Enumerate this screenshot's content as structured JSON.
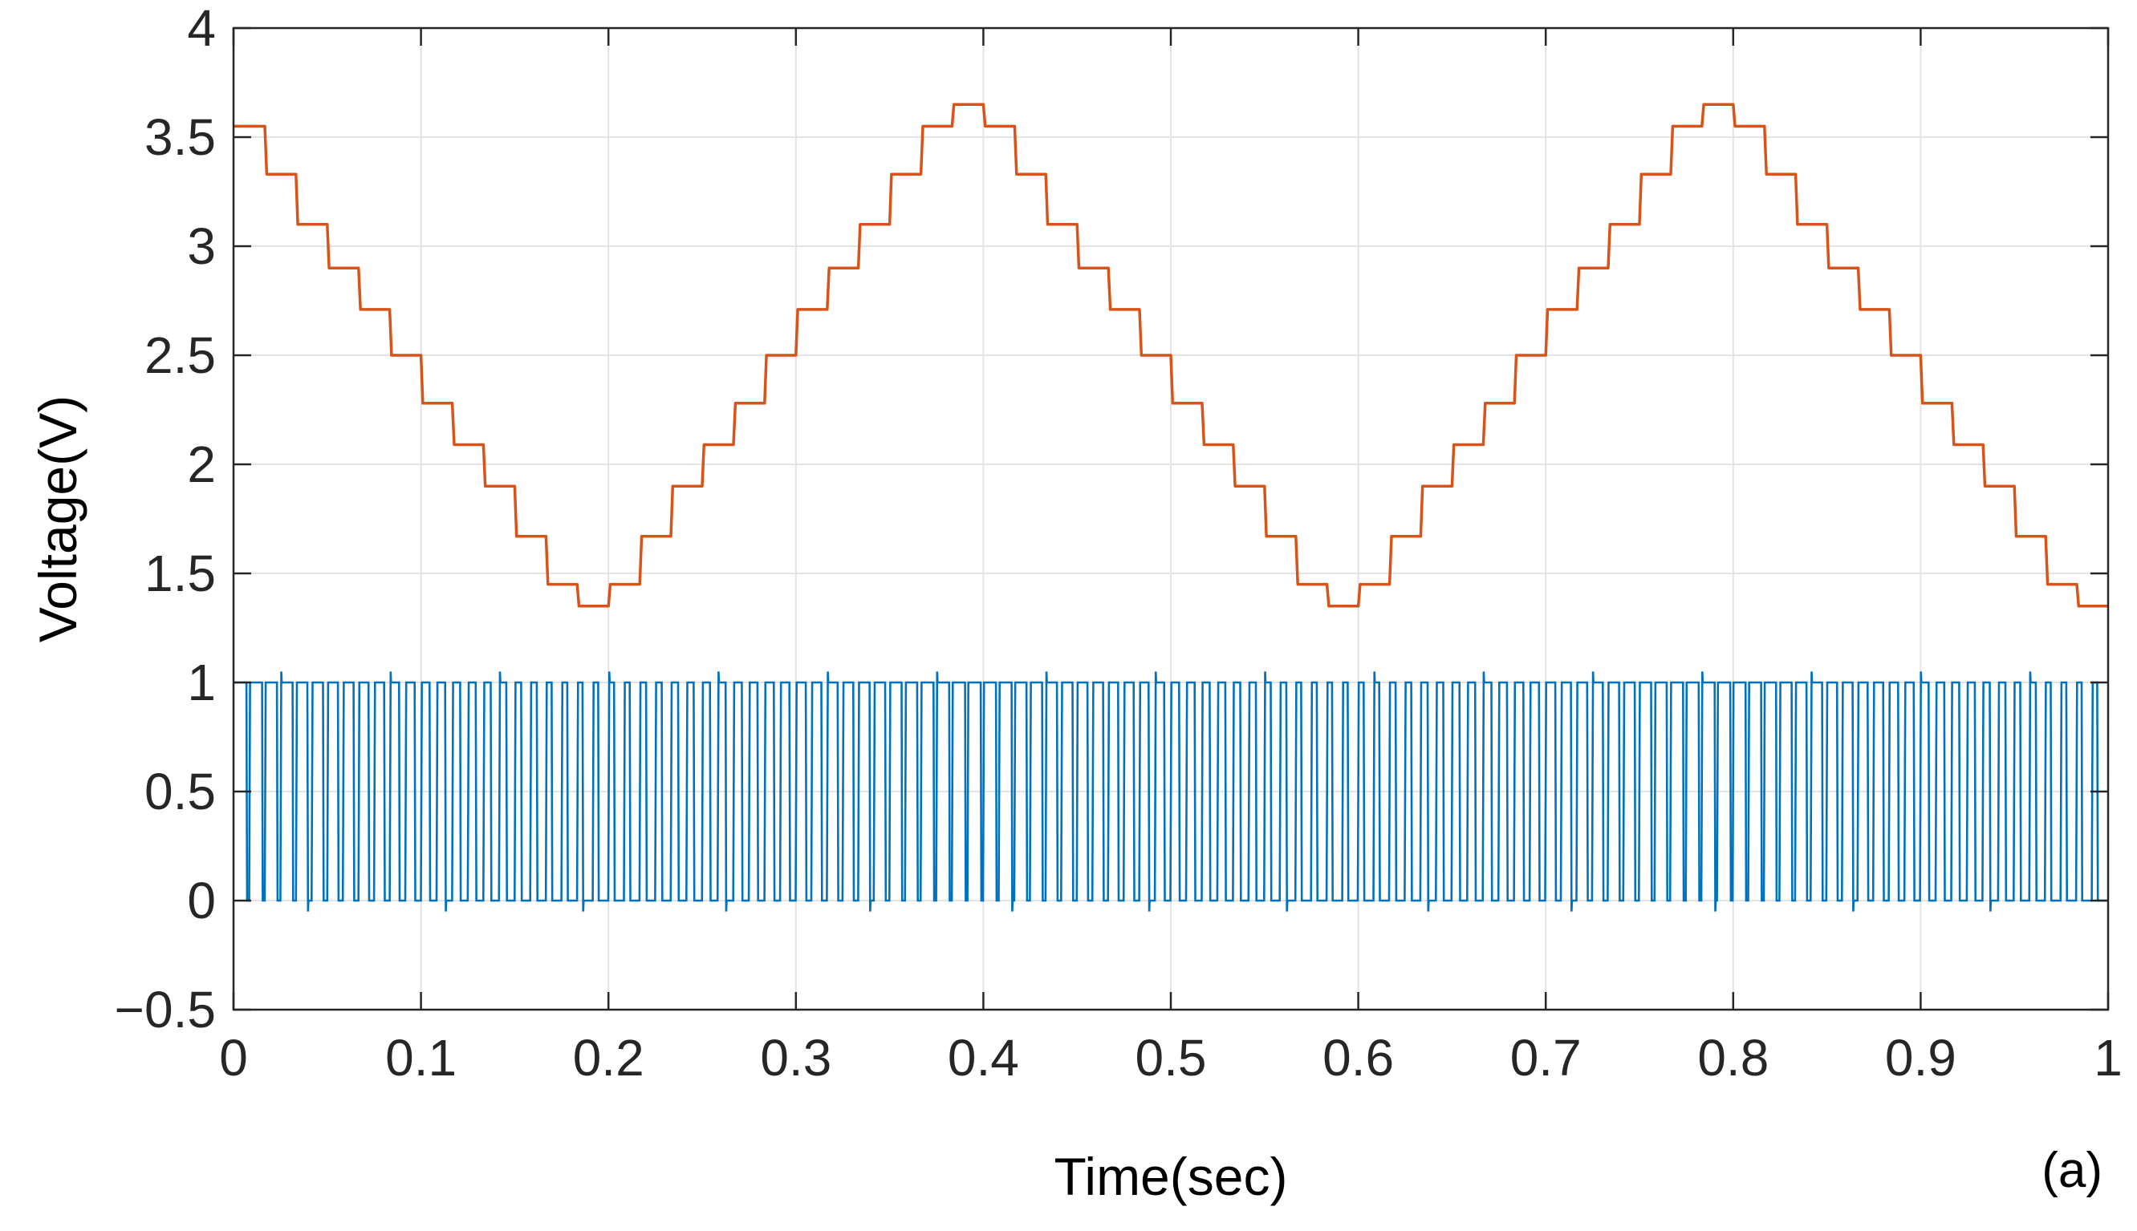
{
  "chart_data": {
    "type": "line",
    "xlabel": "Time(sec)",
    "ylabel": "Voltage(V)",
    "panel_label": "(a)",
    "xlim": [
      0,
      1
    ],
    "ylim": [
      -0.5,
      4
    ],
    "xticks": [
      0,
      0.1,
      0.2,
      0.3,
      0.4,
      0.5,
      0.6,
      0.7,
      0.8,
      0.9,
      1
    ],
    "xtick_labels": [
      "0",
      "0.1",
      "0.2",
      "0.3",
      "0.4",
      "0.5",
      "0.6",
      "0.7",
      "0.8",
      "0.9",
      "1"
    ],
    "yticks": [
      -0.5,
      0,
      0.5,
      1,
      1.5,
      2,
      2.5,
      3,
      3.5,
      4
    ],
    "ytick_labels": [
      "−0.5",
      "0",
      "0.5",
      "1",
      "1.5",
      "2",
      "2.5",
      "3",
      "3.5",
      "4"
    ],
    "grid": true,
    "series": [
      {
        "color": "#d95319",
        "style": "staircase triangle wave",
        "step_width": 0.0167,
        "x": [
          0,
          0.0167,
          0.0333,
          0.05,
          0.0667,
          0.0833,
          0.1,
          0.1167,
          0.1333,
          0.15,
          0.1667,
          0.1833,
          0.2,
          0.2167,
          0.2333,
          0.25,
          0.2667,
          0.2833,
          0.3,
          0.3167,
          0.3333,
          0.35,
          0.3667,
          0.3833,
          0.4,
          0.4167,
          0.4333,
          0.45,
          0.4667,
          0.4833,
          0.5,
          0.5167,
          0.5333,
          0.55,
          0.5667,
          0.5833,
          0.6,
          0.6167,
          0.6333,
          0.65,
          0.6667,
          0.6833,
          0.7,
          0.7167,
          0.7333,
          0.75,
          0.7667,
          0.7833,
          0.8,
          0.8167,
          0.8333,
          0.85,
          0.8667,
          0.8833,
          0.9,
          0.9167,
          0.9333,
          0.95,
          0.9667,
          0.9833
        ],
        "y": [
          3.55,
          3.33,
          3.1,
          2.9,
          2.71,
          2.5,
          2.28,
          2.09,
          1.9,
          1.67,
          1.45,
          1.35,
          1.45,
          1.67,
          1.9,
          2.09,
          2.28,
          2.5,
          2.71,
          2.9,
          3.1,
          3.33,
          3.55,
          3.65,
          3.55,
          3.33,
          3.1,
          2.9,
          2.71,
          2.5,
          2.28,
          2.09,
          1.9,
          1.67,
          1.45,
          1.35,
          1.45,
          1.67,
          1.9,
          2.09,
          2.28,
          2.5,
          2.71,
          2.9,
          3.1,
          3.33,
          3.55,
          3.65,
          3.55,
          3.33,
          3.1,
          2.9,
          2.71,
          2.5,
          2.28,
          2.09,
          1.9,
          1.67,
          1.45,
          1.35
        ]
      },
      {
        "color": "#0072bd",
        "style": "PWM pulse train",
        "low": 0,
        "high": 1,
        "period": 0.00833,
        "overshoot": 0.05,
        "undershoot": -0.05,
        "x_range": [
          0,
          1
        ]
      }
    ]
  }
}
